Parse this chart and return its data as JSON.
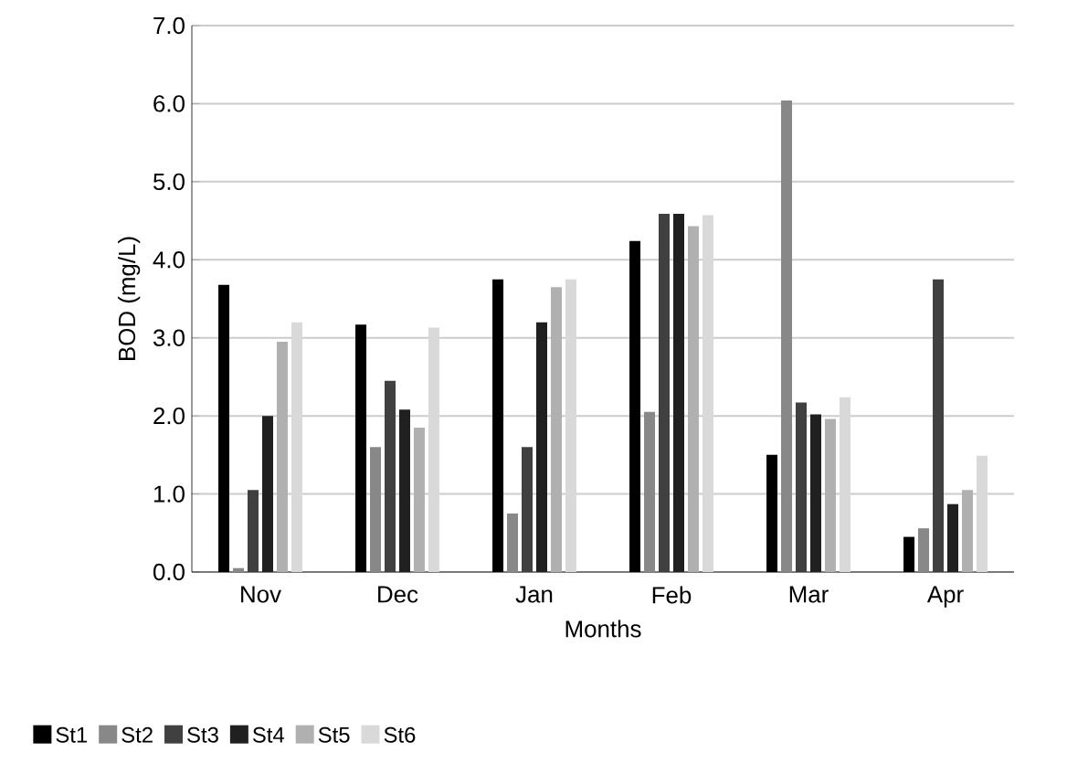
{
  "chart_data": {
    "type": "bar",
    "xlabel": "Months",
    "ylabel": "BOD (mg/L)",
    "categories": [
      "Nov",
      "Dec",
      "Jan",
      "Feb",
      "Mar",
      "Apr"
    ],
    "series": [
      {
        "name": "St1",
        "color": "#000000",
        "values": [
          3.68,
          3.17,
          3.75,
          4.24,
          1.5,
          0.45
        ]
      },
      {
        "name": "St2",
        "color": "#888888",
        "values": [
          0.05,
          1.6,
          0.75,
          2.05,
          6.04,
          0.56
        ]
      },
      {
        "name": "St3",
        "color": "#404040",
        "values": [
          1.05,
          2.45,
          1.6,
          4.59,
          2.17,
          3.75
        ]
      },
      {
        "name": "St4",
        "color": "#202020",
        "values": [
          2.0,
          2.08,
          3.2,
          4.59,
          2.02,
          0.87
        ]
      },
      {
        "name": "St5",
        "color": "#b0b0b0",
        "values": [
          2.95,
          1.85,
          3.65,
          4.43,
          1.96,
          1.05
        ]
      },
      {
        "name": "St6",
        "color": "#d9d9d9",
        "values": [
          3.2,
          3.13,
          3.75,
          4.57,
          2.24,
          1.49
        ]
      }
    ],
    "ylim": [
      0,
      7
    ],
    "yticks": [
      {
        "value": 0,
        "label": "0.0"
      },
      {
        "value": 1,
        "label": "1.0"
      },
      {
        "value": 2,
        "label": "2.0"
      },
      {
        "value": 3,
        "label": "3.0"
      },
      {
        "value": 4,
        "label": "4.0"
      },
      {
        "value": 5,
        "label": "5.0"
      },
      {
        "value": 6,
        "label": "6.0"
      },
      {
        "value": 7,
        "label": "7.0"
      }
    ],
    "grid": "y",
    "legend": "bottom"
  }
}
